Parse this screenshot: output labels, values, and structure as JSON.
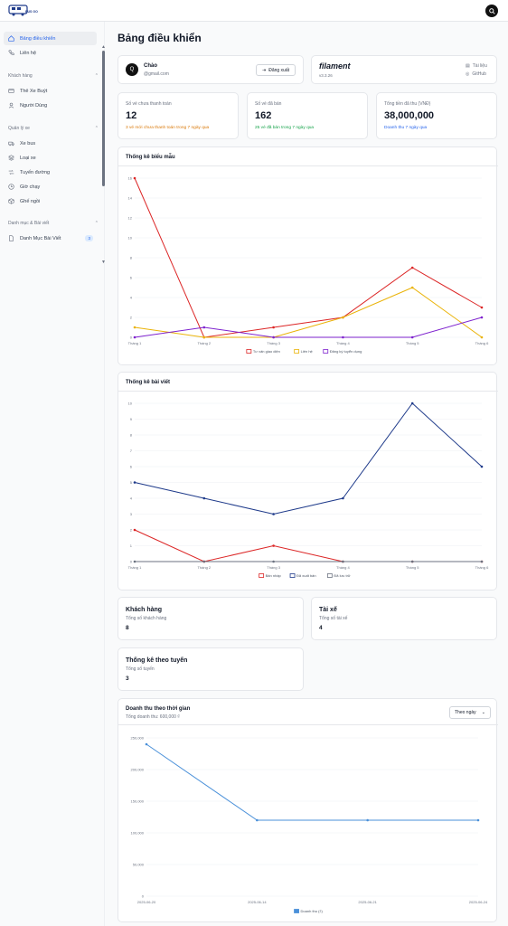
{
  "brand": {
    "logo_text": "BUS GO"
  },
  "sidebar": {
    "items": [
      {
        "label": "Bảng điều khiển"
      },
      {
        "label": "Liên hệ"
      }
    ],
    "groups": [
      {
        "label": "Khách hàng",
        "items": [
          {
            "label": "Thẻ Xe Buýt"
          },
          {
            "label": "Người Dùng"
          }
        ]
      },
      {
        "label": "Quản lý xe",
        "items": [
          {
            "label": "Xe bus"
          },
          {
            "label": "Loại xe"
          },
          {
            "label": "Tuyến đường"
          },
          {
            "label": "Giờ chạy"
          },
          {
            "label": "Ghế ngồi"
          }
        ]
      },
      {
        "label": "Danh mục & Bài viết",
        "items": [
          {
            "label": "Danh Mục Bài Viết",
            "badge": "3"
          }
        ]
      }
    ]
  },
  "page": {
    "title": "Bảng điều khiển"
  },
  "user_card": {
    "greeting": "Chào",
    "email": "@gmail.com",
    "avatar_letter": "Q",
    "logout_label": "Đăng xuất"
  },
  "filament_card": {
    "brand": "filament",
    "version": "v3.3.26",
    "docs_label": "Tài liệu",
    "github_label": "GitHub"
  },
  "stats": [
    {
      "label": "Số vé chưa thanh toán",
      "value": "12",
      "desc": "3 vé mới chưa thanh toán trong 7 ngày qua",
      "color": "#d97706"
    },
    {
      "label": "Số vé đã bán",
      "value": "162",
      "desc": "25 vé đã bán trong 7 ngày qua",
      "color": "#16a34a"
    },
    {
      "label": "Tổng tiền đã thu (VNĐ)",
      "value": "38,000,000",
      "desc": "Doanh thu 7 ngày qua",
      "color": "#2563eb"
    }
  ],
  "chart_forms": {
    "title": "Thống kê biểu mẫu",
    "chart_data": {
      "type": "line",
      "categories": [
        "Tháng 1",
        "Tháng 2",
        "Tháng 3",
        "Tháng 4",
        "Tháng 5",
        "Tháng 6"
      ],
      "ylim": [
        0,
        16
      ],
      "yticks": [
        "0",
        "2",
        "4",
        "6",
        "8",
        "10",
        "12",
        "14",
        "16"
      ],
      "series": [
        {
          "name": "Tư vấn giao diện",
          "color": "#dc2626",
          "values": [
            16,
            0,
            1,
            2,
            7,
            3
          ]
        },
        {
          "name": "Liên hệ",
          "color": "#eab308",
          "values": [
            1,
            0,
            0,
            2,
            5,
            0
          ]
        },
        {
          "name": "Đăng ký tuyển dụng",
          "color": "#7e22ce",
          "values": [
            0,
            1,
            0,
            0,
            0,
            2
          ]
        }
      ]
    }
  },
  "chart_posts": {
    "title": "Thống kê bài viết",
    "chart_data": {
      "type": "line",
      "categories": [
        "Tháng 1",
        "Tháng 2",
        "Tháng 3",
        "Tháng 4",
        "Tháng 5",
        "Tháng 6"
      ],
      "ylim": [
        0,
        10
      ],
      "yticks": [
        "0",
        "1",
        "2",
        "3",
        "4",
        "5",
        "6",
        "7",
        "8",
        "9",
        "10"
      ],
      "series": [
        {
          "name": "Bản nháp",
          "color": "#dc2626",
          "values": [
            2,
            0,
            1,
            0,
            0,
            0
          ]
        },
        {
          "name": "Đã xuất bản",
          "color": "#1e3a8a",
          "values": [
            5,
            4,
            3,
            4,
            10,
            6
          ]
        },
        {
          "name": "Đã lưu trữ",
          "color": "#6b7280",
          "values": [
            0,
            0,
            0,
            0,
            0,
            0
          ]
        }
      ]
    }
  },
  "info_cards": [
    {
      "title": "Khách hàng",
      "label": "Tổng số khách hàng",
      "value": "8"
    },
    {
      "title": "Tài xế",
      "label": "Tổng số tài xế",
      "value": "4"
    },
    {
      "title": "Thống kê theo tuyến",
      "label": "Tổng số tuyến",
      "value": "3"
    }
  ],
  "chart_revenue": {
    "title": "Doanh thu theo thời gian",
    "subtitle": "Tổng doanh thu: 600,000 ₫",
    "filter_label": "Theo ngày",
    "chart_data": {
      "type": "line",
      "x": [
        "2025-06-20",
        "2025-06-14",
        "2025-06-21",
        "2025-06-24"
      ],
      "ylim": [
        0,
        250000
      ],
      "yticks": [
        "0",
        "50,000",
        "100,000",
        "150,000",
        "200,000",
        "250,000"
      ],
      "series": [
        {
          "name": "Doanh thu (₫)",
          "color": "#4a90d9",
          "values": [
            240000,
            120000,
            120000,
            120000
          ]
        }
      ]
    }
  }
}
